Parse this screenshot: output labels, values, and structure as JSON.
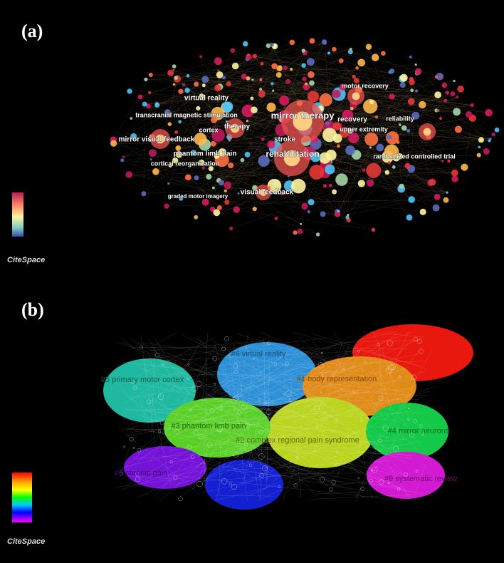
{
  "panels": [
    {
      "label": "(a)",
      "brand": "CiteSpace",
      "keywords": [
        "mirror therapy",
        "rehabilitation",
        "virtual reality",
        "transcranial magnetic stimulation",
        "therapy",
        "cortex",
        "mirror visual feedback",
        "phantom limb pain",
        "cortical reorganization",
        "stroke",
        "recovery",
        "upper extremity",
        "motor recovery",
        "reliability",
        "randomized controlled trial",
        "graded motor imagery",
        "visual feedback"
      ]
    },
    {
      "label": "(b)",
      "brand": "CiteSpace",
      "clusters": [
        "#5 primary motor cortex",
        "#6 virtual reality",
        "#1 body representation",
        "#3 phantom limb pain",
        "#2 complex regional pain syndrome",
        "#4 mirror neurons",
        "#8 chronic pain",
        "#9 systematic review"
      ]
    }
  ]
}
